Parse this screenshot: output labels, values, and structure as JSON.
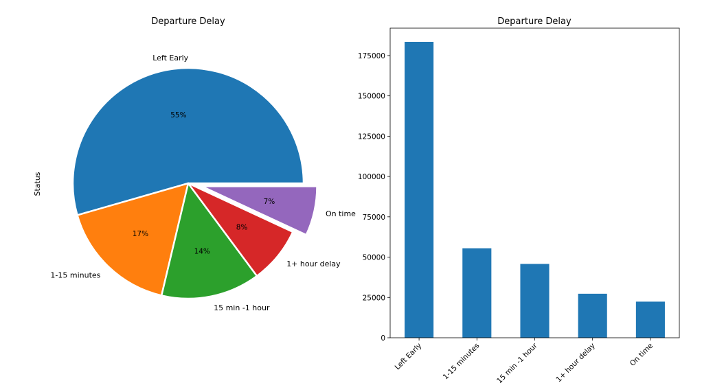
{
  "chart_data": [
    {
      "type": "pie",
      "title": "Departure Delay",
      "ylabel": "Status",
      "categories": [
        "Left Early",
        "1-15 minutes",
        "15 min -1 hour",
        "1+ hour delay",
        "On time"
      ],
      "values": [
        55,
        17,
        14,
        8,
        7
      ],
      "value_labels": [
        "55%",
        "17%",
        "14%",
        "8%",
        "7%"
      ],
      "exploded": [
        false,
        false,
        false,
        false,
        true
      ],
      "colors": [
        "#1f77b4",
        "#ff7f0e",
        "#2ca02c",
        "#d62728",
        "#9467bd"
      ]
    },
    {
      "type": "bar",
      "title": "Departure Delay",
      "categories": [
        "Left Early",
        "1-15 minutes",
        "15 min -1 hour",
        "1+ hour delay",
        "On time"
      ],
      "values": [
        183500,
        55500,
        45800,
        27300,
        22400
      ],
      "ylim": [
        0,
        192000
      ],
      "yticks": [
        0,
        25000,
        50000,
        75000,
        100000,
        125000,
        150000,
        175000
      ],
      "ytick_labels": [
        "0",
        "25000",
        "50000",
        "75000",
        "100000",
        "125000",
        "150000",
        "175000"
      ],
      "grid": false,
      "color": "#1f77b4"
    }
  ]
}
